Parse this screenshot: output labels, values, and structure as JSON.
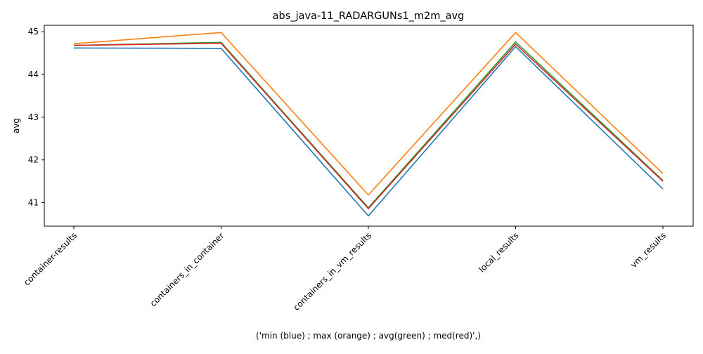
{
  "chart_data": {
    "type": "line",
    "title": "abs_java-11_RADARGUNs1_m2m_avg",
    "xlabel": "('min (blue) ; max (orange) ; avg(green) ; med(red)',)",
    "ylabel": "avg",
    "categories": [
      "container-results",
      "containers_in_container",
      "containers_in_vm_results",
      "local_results",
      "vm_results"
    ],
    "ylim": [
      40.45,
      45.15
    ],
    "yticks": [
      41,
      42,
      43,
      44,
      45
    ],
    "grid": false,
    "series": [
      {
        "color": "#1f77b4",
        "values": [
          44.62,
          44.61,
          40.69,
          44.65,
          41.32
        ]
      },
      {
        "color": "#ff7f0e",
        "values": [
          44.72,
          44.98,
          41.18,
          44.98,
          41.68
        ]
      },
      {
        "color": "#2ca02c",
        "values": [
          44.68,
          44.75,
          40.88,
          44.76,
          41.52
        ]
      },
      {
        "color": "#d62728",
        "values": [
          44.68,
          44.73,
          40.86,
          44.71,
          41.5
        ]
      }
    ]
  }
}
